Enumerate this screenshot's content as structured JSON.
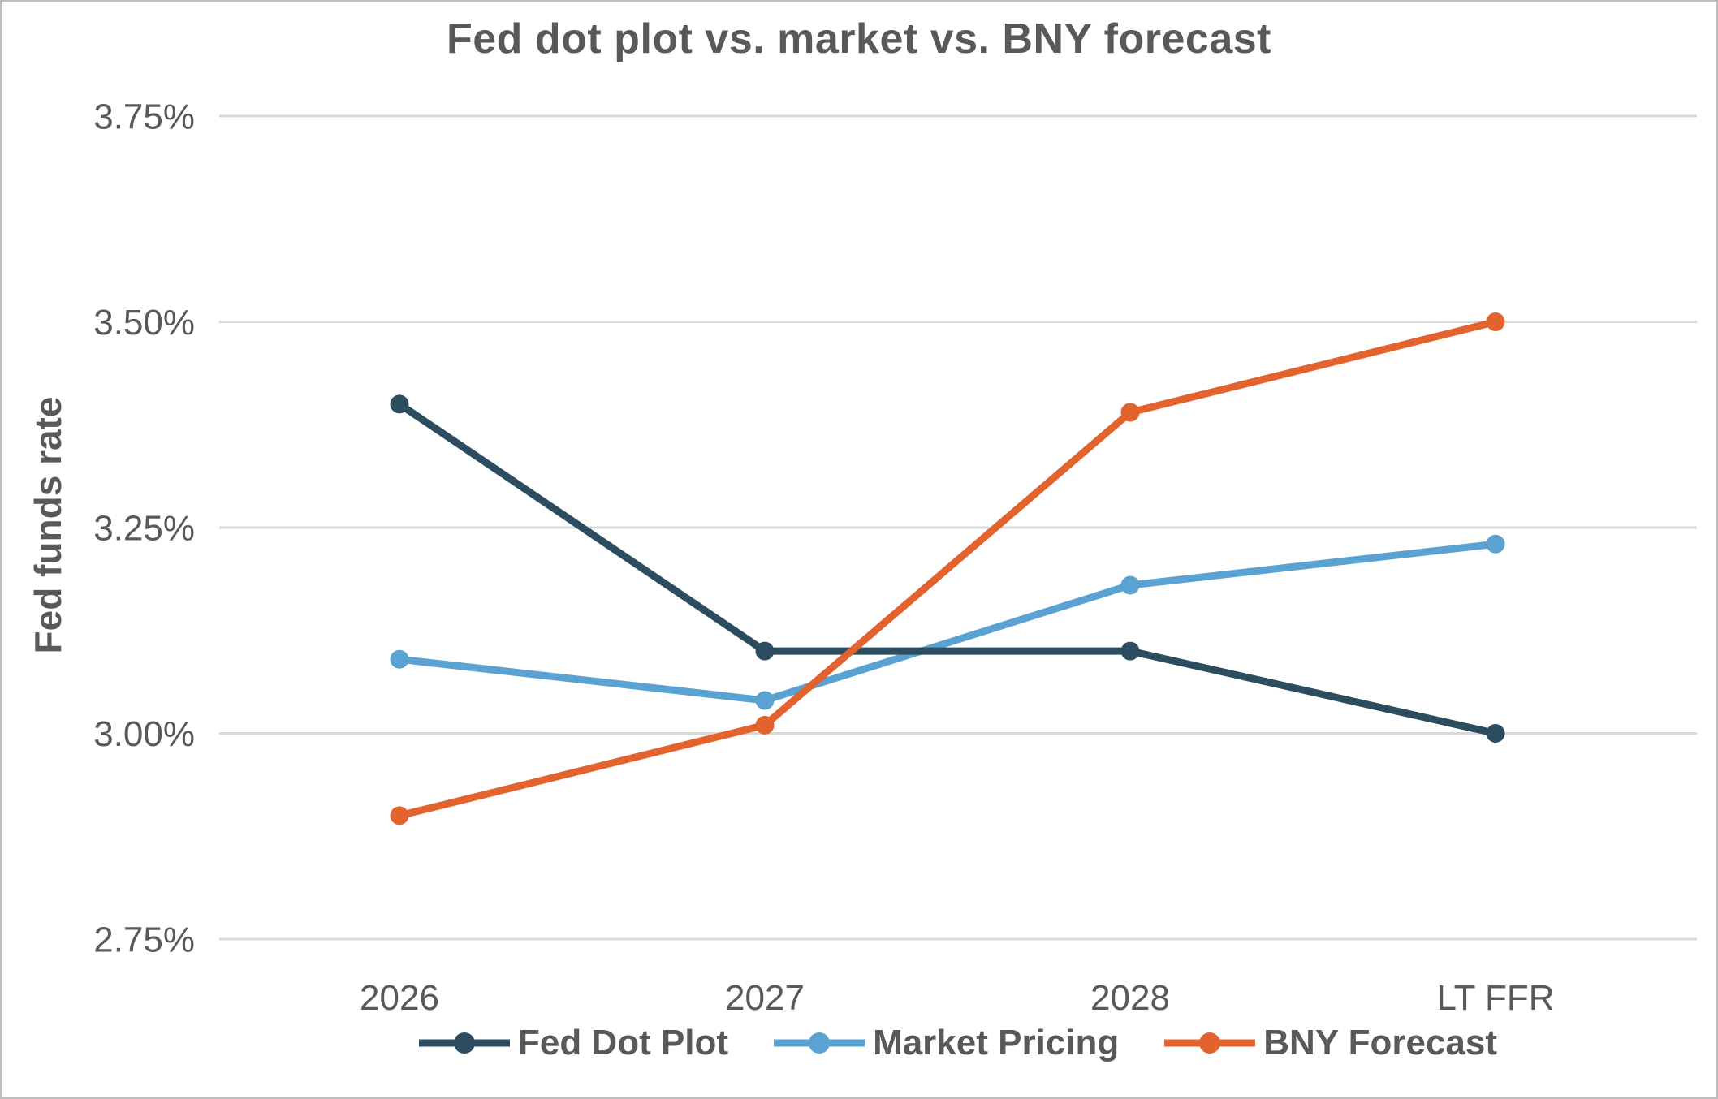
{
  "chart_data": {
    "type": "line",
    "title": "Fed dot plot vs. market vs. BNY forecast",
    "ylabel": "Fed funds rate",
    "xlabel": "",
    "categories": [
      "2026",
      "2027",
      "2028",
      "LT FFR"
    ],
    "series": [
      {
        "name": "Fed Dot Plot",
        "color": "#2C4D5F",
        "values": [
          3.4,
          3.1,
          3.1,
          3.0
        ]
      },
      {
        "name": "Market Pricing",
        "color": "#5AA2D2",
        "values": [
          3.09,
          3.04,
          3.18,
          3.23
        ]
      },
      {
        "name": "BNY Forecast",
        "color": "#E2632E",
        "values": [
          2.9,
          3.01,
          3.39,
          3.5
        ]
      }
    ],
    "ylim": [
      2.75,
      3.75
    ],
    "y_ticks": [
      {
        "label": "3.75%",
        "value": 3.75
      },
      {
        "label": "3.50%",
        "value": 3.5
      },
      {
        "label": "3.25%",
        "value": 3.25
      },
      {
        "label": "3.00%",
        "value": 3.0
      },
      {
        "label": "2.75%",
        "value": 2.75
      }
    ],
    "grid": "horizontal",
    "legend_position": "bottom",
    "marker": "circle",
    "colors": {
      "gridline": "#D9D9D9",
      "text": "#595959",
      "background": "#FFFFFF",
      "border": "#BDBDBD"
    }
  }
}
